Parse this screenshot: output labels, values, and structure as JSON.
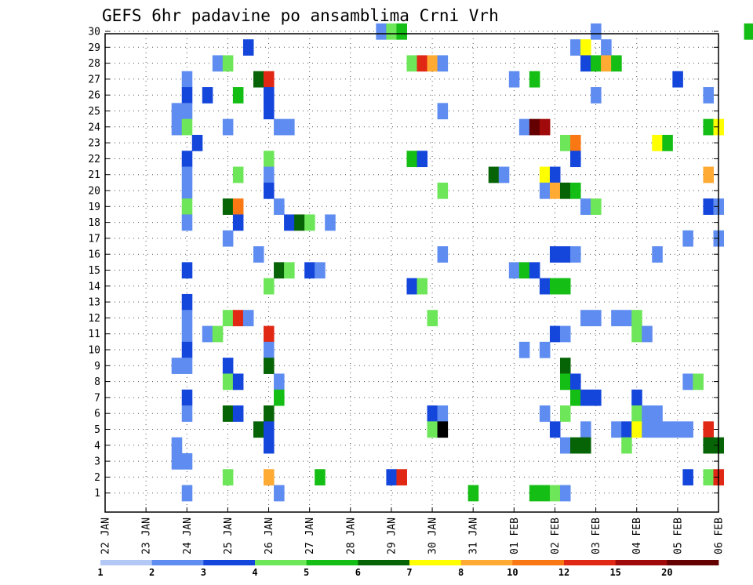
{
  "chart_data": {
    "type": "heatmap",
    "title": "GEFS 6hr padavine po ansamblima Crni Vrh",
    "xlabel": "",
    "ylabel": "",
    "x_tick_labels": [
      "22 JAN",
      "23 JAN",
      "24 JAN",
      "25 JAN",
      "26 JAN",
      "27 JAN",
      "28 JAN",
      "29 JAN",
      "30 JAN",
      "31 JAN",
      "01 FEB",
      "02 FEB",
      "03 FEB",
      "04 FEB",
      "05 FEB",
      "06 FEB"
    ],
    "y_tick_labels": [
      "1",
      "2",
      "3",
      "4",
      "5",
      "6",
      "7",
      "8",
      "9",
      "10",
      "11",
      "12",
      "13",
      "14",
      "15",
      "16",
      "17",
      "18",
      "19",
      "20",
      "21",
      "22",
      "23",
      "24",
      "25",
      "26",
      "27",
      "28",
      "29",
      "30"
    ],
    "ylim": [
      0,
      30
    ],
    "x_steps": 60,
    "step_hours": 6,
    "grid": true,
    "legend": {
      "position": "bottom",
      "bounds": [
        "1",
        "2",
        "3",
        "4",
        "5",
        "6",
        "7",
        "8",
        "10",
        "12",
        "15",
        "20"
      ],
      "colors": [
        "#b4c8f5",
        "#5f8cf0",
        "#1446dc",
        "#6ee65a",
        "#14be14",
        "#066406",
        "#ffff00",
        "#ffaa32",
        "#fa7814",
        "#e12814",
        "#a00a0a",
        "#640000"
      ]
    },
    "cells": [
      [
        27,
        30,
        1
      ],
      [
        28,
        30,
        3
      ],
      [
        29,
        30,
        4
      ],
      [
        48,
        30,
        1
      ],
      [
        63,
        30,
        4
      ],
      [
        14,
        29,
        2
      ],
      [
        46,
        29,
        1
      ],
      [
        47,
        29,
        6
      ],
      [
        49,
        29,
        1
      ],
      [
        11,
        28,
        1
      ],
      [
        12,
        28,
        3
      ],
      [
        30,
        28,
        3
      ],
      [
        31,
        28,
        9
      ],
      [
        32,
        28,
        7
      ],
      [
        33,
        28,
        1
      ],
      [
        47,
        28,
        2
      ],
      [
        48,
        28,
        4
      ],
      [
        49,
        28,
        7
      ],
      [
        50,
        28,
        4
      ],
      [
        8,
        27,
        1
      ],
      [
        15,
        27,
        5
      ],
      [
        16,
        27,
        9
      ],
      [
        40,
        27,
        1
      ],
      [
        42,
        27,
        4
      ],
      [
        56,
        27,
        2
      ],
      [
        8,
        26,
        2
      ],
      [
        10,
        26,
        2
      ],
      [
        13,
        26,
        4
      ],
      [
        16,
        26,
        2
      ],
      [
        48,
        26,
        1
      ],
      [
        59,
        26,
        1
      ],
      [
        7,
        25,
        1
      ],
      [
        8,
        25,
        1
      ],
      [
        16,
        25,
        2
      ],
      [
        33,
        25,
        1
      ],
      [
        7,
        24,
        1
      ],
      [
        8,
        24,
        3
      ],
      [
        12,
        24,
        1
      ],
      [
        17,
        24,
        1
      ],
      [
        18,
        24,
        1
      ],
      [
        41,
        24,
        1
      ],
      [
        42,
        24,
        11
      ],
      [
        43,
        24,
        10
      ],
      [
        59,
        24,
        4
      ],
      [
        60,
        24,
        6
      ],
      [
        9,
        23,
        2
      ],
      [
        45,
        23,
        3
      ],
      [
        46,
        23,
        8
      ],
      [
        54,
        23,
        6
      ],
      [
        55,
        23,
        4
      ],
      [
        8,
        22,
        2
      ],
      [
        16,
        22,
        3
      ],
      [
        30,
        22,
        4
      ],
      [
        31,
        22,
        2
      ],
      [
        46,
        22,
        2
      ],
      [
        8,
        21,
        1
      ],
      [
        13,
        21,
        3
      ],
      [
        16,
        21,
        1
      ],
      [
        38,
        21,
        5
      ],
      [
        39,
        21,
        1
      ],
      [
        43,
        21,
        6
      ],
      [
        44,
        21,
        2
      ],
      [
        59,
        21,
        7
      ],
      [
        8,
        20,
        1
      ],
      [
        16,
        20,
        2
      ],
      [
        33,
        20,
        3
      ],
      [
        43,
        20,
        1
      ],
      [
        44,
        20,
        7
      ],
      [
        45,
        20,
        5
      ],
      [
        46,
        20,
        4
      ],
      [
        8,
        19,
        3
      ],
      [
        12,
        19,
        5
      ],
      [
        13,
        19,
        8
      ],
      [
        17,
        19,
        1
      ],
      [
        47,
        19,
        1
      ],
      [
        48,
        19,
        3
      ],
      [
        59,
        19,
        2
      ],
      [
        60,
        19,
        1
      ],
      [
        8,
        18,
        1
      ],
      [
        13,
        18,
        2
      ],
      [
        18,
        18,
        2
      ],
      [
        19,
        18,
        5
      ],
      [
        20,
        18,
        3
      ],
      [
        22,
        18,
        1
      ],
      [
        12,
        17,
        1
      ],
      [
        57,
        17,
        1
      ],
      [
        60,
        17,
        1
      ],
      [
        15,
        16,
        1
      ],
      [
        33,
        16,
        1
      ],
      [
        44,
        16,
        2
      ],
      [
        45,
        16,
        2
      ],
      [
        46,
        16,
        1
      ],
      [
        54,
        16,
        1
      ],
      [
        8,
        15,
        2
      ],
      [
        17,
        15,
        5
      ],
      [
        18,
        15,
        3
      ],
      [
        20,
        15,
        2
      ],
      [
        21,
        15,
        1
      ],
      [
        40,
        15,
        1
      ],
      [
        41,
        15,
        4
      ],
      [
        42,
        15,
        2
      ],
      [
        16,
        14,
        3
      ],
      [
        30,
        14,
        2
      ],
      [
        31,
        14,
        3
      ],
      [
        43,
        14,
        2
      ],
      [
        44,
        14,
        4
      ],
      [
        45,
        14,
        4
      ],
      [
        8,
        13,
        2
      ],
      [
        8,
        12,
        1
      ],
      [
        12,
        12,
        3
      ],
      [
        13,
        12,
        9
      ],
      [
        14,
        12,
        1
      ],
      [
        32,
        12,
        3
      ],
      [
        47,
        12,
        1
      ],
      [
        48,
        12,
        1
      ],
      [
        50,
        12,
        1
      ],
      [
        51,
        12,
        1
      ],
      [
        52,
        12,
        3
      ],
      [
        8,
        11,
        1
      ],
      [
        10,
        11,
        1
      ],
      [
        11,
        11,
        3
      ],
      [
        16,
        11,
        9
      ],
      [
        44,
        11,
        2
      ],
      [
        45,
        11,
        1
      ],
      [
        52,
        11,
        3
      ],
      [
        53,
        11,
        1
      ],
      [
        8,
        10,
        2
      ],
      [
        16,
        10,
        1
      ],
      [
        41,
        10,
        1
      ],
      [
        43,
        10,
        1
      ],
      [
        7,
        9,
        1
      ],
      [
        8,
        9,
        1
      ],
      [
        12,
        9,
        2
      ],
      [
        16,
        9,
        5
      ],
      [
        45,
        9,
        5
      ],
      [
        12,
        8,
        3
      ],
      [
        13,
        8,
        2
      ],
      [
        17,
        8,
        1
      ],
      [
        45,
        8,
        4
      ],
      [
        46,
        8,
        2
      ],
      [
        57,
        8,
        1
      ],
      [
        58,
        8,
        3
      ],
      [
        8,
        7,
        2
      ],
      [
        17,
        7,
        4
      ],
      [
        46,
        7,
        4
      ],
      [
        47,
        7,
        2
      ],
      [
        48,
        7,
        2
      ],
      [
        52,
        7,
        2
      ],
      [
        8,
        6,
        1
      ],
      [
        12,
        6,
        5
      ],
      [
        13,
        6,
        2
      ],
      [
        16,
        6,
        5
      ],
      [
        32,
        6,
        2
      ],
      [
        33,
        6,
        1
      ],
      [
        43,
        6,
        1
      ],
      [
        45,
        6,
        3
      ],
      [
        52,
        6,
        3
      ],
      [
        53,
        6,
        1
      ],
      [
        54,
        6,
        1
      ],
      [
        15,
        5,
        5
      ],
      [
        16,
        5,
        2
      ],
      [
        32,
        5,
        3
      ],
      [
        33,
        5,
        13
      ],
      [
        44,
        5,
        2
      ],
      [
        47,
        5,
        1
      ],
      [
        50,
        5,
        1
      ],
      [
        51,
        5,
        2
      ],
      [
        52,
        5,
        6
      ],
      [
        53,
        5,
        1
      ],
      [
        54,
        5,
        1
      ],
      [
        55,
        5,
        1
      ],
      [
        56,
        5,
        1
      ],
      [
        57,
        5,
        1
      ],
      [
        59,
        5,
        9
      ],
      [
        7,
        4,
        1
      ],
      [
        16,
        4,
        2
      ],
      [
        45,
        4,
        1
      ],
      [
        46,
        4,
        5
      ],
      [
        47,
        4,
        5
      ],
      [
        51,
        4,
        3
      ],
      [
        59,
        4,
        5
      ],
      [
        60,
        4,
        5
      ],
      [
        7,
        3,
        1
      ],
      [
        8,
        3,
        1
      ],
      [
        12,
        2,
        3
      ],
      [
        16,
        2,
        7
      ],
      [
        21,
        2,
        4
      ],
      [
        28,
        2,
        2
      ],
      [
        29,
        2,
        9
      ],
      [
        57,
        2,
        2
      ],
      [
        59,
        2,
        3
      ],
      [
        60,
        2,
        9
      ],
      [
        8,
        1,
        1
      ],
      [
        17,
        1,
        1
      ],
      [
        36,
        1,
        4
      ],
      [
        42,
        1,
        4
      ],
      [
        43,
        1,
        4
      ],
      [
        44,
        1,
        3
      ],
      [
        45,
        1,
        1
      ]
    ]
  }
}
